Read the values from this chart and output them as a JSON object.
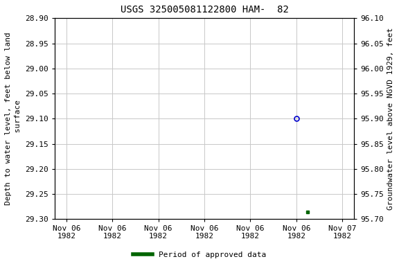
{
  "title": "USGS 325005081122800 HAM-  82",
  "ylabel_left": "Depth to water level, feet below land\n surface",
  "ylabel_right": "Groundwater level above NGVD 1929, feet",
  "ylim_left": [
    29.3,
    28.9
  ],
  "ylim_right": [
    95.7,
    96.1
  ],
  "y_ticks_left": [
    28.9,
    28.95,
    29.0,
    29.05,
    29.1,
    29.15,
    29.2,
    29.25,
    29.3
  ],
  "y_ticks_right": [
    96.1,
    96.05,
    96.0,
    95.95,
    95.9,
    95.85,
    95.8,
    95.75,
    95.7
  ],
  "background_color": "#ffffff",
  "grid_color": "#c8c8c8",
  "open_circle_point_x_hours": 20,
  "open_circle_point_value": 29.1,
  "filled_square_point_x_hours": 21,
  "filled_square_point_value": 29.285,
  "open_circle_color": "#0000cc",
  "filled_square_color": "#006400",
  "legend_label": "Period of approved data",
  "legend_color": "#006400",
  "title_fontsize": 10,
  "axis_label_fontsize": 8,
  "tick_fontsize": 8,
  "legend_fontsize": 8,
  "x_tick_hours": [
    0,
    4,
    8,
    12,
    16,
    20,
    24
  ],
  "x_tick_labels": [
    "Nov 06\n1982",
    "Nov 06\n1982",
    "Nov 06\n1982",
    "Nov 06\n1982",
    "Nov 06\n1982",
    "Nov 06\n1982",
    "Nov 07\n1982"
  ]
}
